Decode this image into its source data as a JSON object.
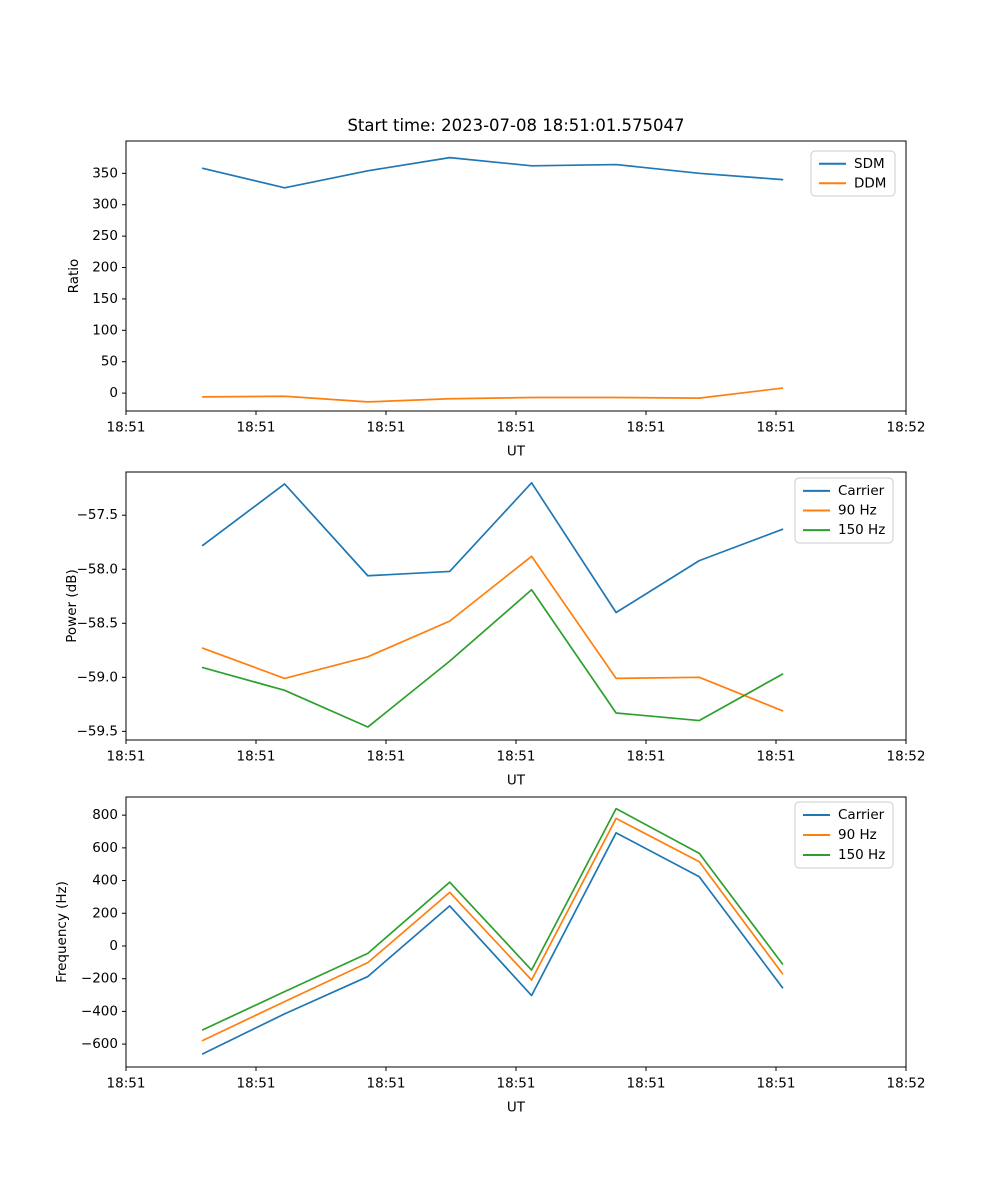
{
  "figure": {
    "title": "Start time: 2023-07-08 18:51:01.575047"
  },
  "chart_data": [
    {
      "id": "ratio",
      "type": "line",
      "title": "Start time: 2023-07-08 18:51:01.575047",
      "xlabel": "UT",
      "ylabel": "Ratio",
      "xlim_seconds": [
        0,
        60
      ],
      "x_tick_seconds": [
        0,
        10,
        20,
        30,
        40,
        50,
        60
      ],
      "x_tick_labels": [
        "18:51",
        "18:51",
        "18:51",
        "18:51",
        "18:51",
        "18:51",
        "18:52"
      ],
      "ylim": [
        -28.5,
        401.5
      ],
      "yticks": [
        0,
        50,
        100,
        150,
        200,
        250,
        300,
        350
      ],
      "ytick_labels": [
        "0",
        "50",
        "100",
        "150",
        "200",
        "250",
        "300",
        "350"
      ],
      "grid": false,
      "legend_position": "top-right",
      "x_seconds": [
        5.9,
        12.2,
        18.6,
        24.9,
        31.2,
        37.7,
        44.1,
        50.5
      ],
      "series": [
        {
          "name": "SDM",
          "color": "#1f77b4",
          "values": [
            358,
            327,
            354,
            375,
            362,
            364,
            350,
            340
          ]
        },
        {
          "name": "DDM",
          "color": "#ff7f0e",
          "values": [
            -6,
            -5,
            -14,
            -9,
            -7,
            -7,
            -8,
            8
          ]
        }
      ]
    },
    {
      "id": "power",
      "type": "line",
      "title": "",
      "xlabel": "UT",
      "ylabel": "Power (dB)",
      "xlim_seconds": [
        0,
        60
      ],
      "x_tick_seconds": [
        0,
        10,
        20,
        30,
        40,
        50,
        60
      ],
      "x_tick_labels": [
        "18:51",
        "18:51",
        "18:51",
        "18:51",
        "18:51",
        "18:51",
        "18:52"
      ],
      "ylim": [
        -59.58,
        -57.1
      ],
      "yticks": [
        -57.5,
        -58.0,
        -58.5,
        -59.0,
        -59.5
      ],
      "ytick_labels": [
        "−57.5",
        "−58.0",
        "−58.5",
        "−59.0",
        "−59.5"
      ],
      "grid": false,
      "legend_position": "top-right",
      "x_seconds": [
        5.9,
        12.2,
        18.6,
        24.9,
        31.2,
        37.7,
        44.1,
        50.5
      ],
      "series": [
        {
          "name": "Carrier",
          "color": "#1f77b4",
          "values": [
            -57.78,
            -57.21,
            -58.06,
            -58.02,
            -57.2,
            -58.4,
            -57.92,
            -57.63
          ]
        },
        {
          "name": "90 Hz",
          "color": "#ff7f0e",
          "values": [
            -58.73,
            -59.01,
            -58.81,
            -58.48,
            -57.88,
            -59.01,
            -59.0,
            -59.31
          ]
        },
        {
          "name": "150 Hz",
          "color": "#2ca02c",
          "values": [
            -58.91,
            -59.12,
            -59.46,
            -58.85,
            -58.19,
            -59.33,
            -59.4,
            -58.97
          ]
        }
      ]
    },
    {
      "id": "frequency",
      "type": "line",
      "title": "",
      "xlabel": "UT",
      "ylabel": "Frequency (Hz)",
      "xlim_seconds": [
        0,
        60
      ],
      "x_tick_seconds": [
        0,
        10,
        20,
        30,
        40,
        50,
        60
      ],
      "x_tick_labels": [
        "18:51",
        "18:51",
        "18:51",
        "18:51",
        "18:51",
        "18:51",
        "18:52"
      ],
      "ylim": [
        -740,
        911
      ],
      "yticks": [
        800,
        600,
        400,
        200,
        0,
        -200,
        -400,
        -600
      ],
      "ytick_labels": [
        "800",
        "600",
        "400",
        "200",
        "0",
        "−200",
        "−400",
        "−600"
      ],
      "grid": false,
      "legend_position": "top-right",
      "x_seconds": [
        5.9,
        12.2,
        18.6,
        24.9,
        31.2,
        37.7,
        44.1,
        50.5
      ],
      "series": [
        {
          "name": "Carrier",
          "color": "#1f77b4",
          "values": [
            -660,
            -415,
            -187,
            245,
            -303,
            692,
            423,
            -255
          ]
        },
        {
          "name": "90 Hz",
          "color": "#ff7f0e",
          "values": [
            -578,
            -340,
            -102,
            328,
            -208,
            780,
            515,
            -170
          ]
        },
        {
          "name": "150 Hz",
          "color": "#2ca02c",
          "values": [
            -513,
            -279,
            -45,
            390,
            -147,
            840,
            566,
            -110
          ]
        }
      ]
    }
  ]
}
